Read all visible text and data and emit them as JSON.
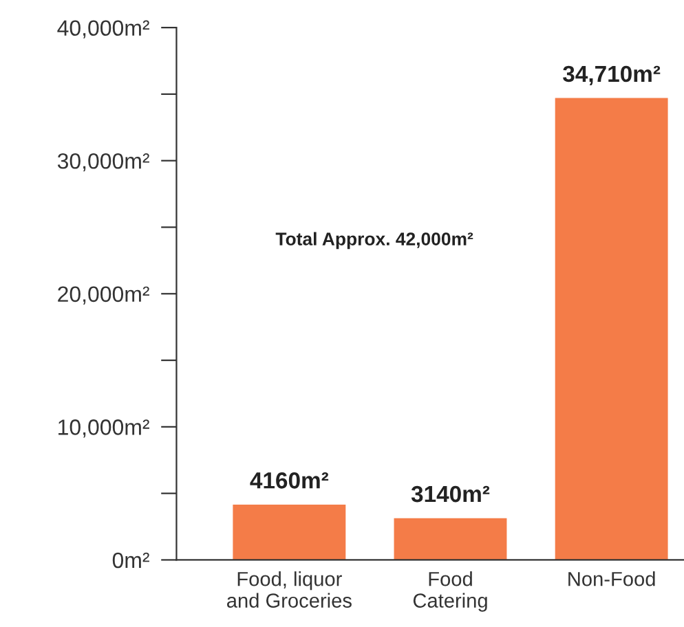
{
  "chart_data": {
    "type": "bar",
    "categories": [
      "Food, liquor\nand Groceries",
      "Food\nCatering",
      "Non-Food"
    ],
    "values": [
      4160,
      3140,
      34710
    ],
    "color": "#f47c48",
    "value_labels": [
      "4160m²",
      "3140m²",
      "34,710m²"
    ],
    "ylim": [
      0,
      40000
    ],
    "yticks": [
      {
        "value": 0,
        "label": "0m²"
      },
      {
        "value": 5000,
        "label": null
      },
      {
        "value": 10000,
        "label": "10,000m²"
      },
      {
        "value": 15000,
        "label": null
      },
      {
        "value": 20000,
        "label": "20,000m²"
      },
      {
        "value": 25000,
        "label": null
      },
      {
        "value": 30000,
        "label": "30,000m²"
      },
      {
        "value": 35000,
        "label": null
      },
      {
        "value": 40000,
        "label": "40,000m²"
      }
    ],
    "annotations": [
      "Total Approx. 42,000m²"
    ],
    "grid": false,
    "legend": false
  }
}
